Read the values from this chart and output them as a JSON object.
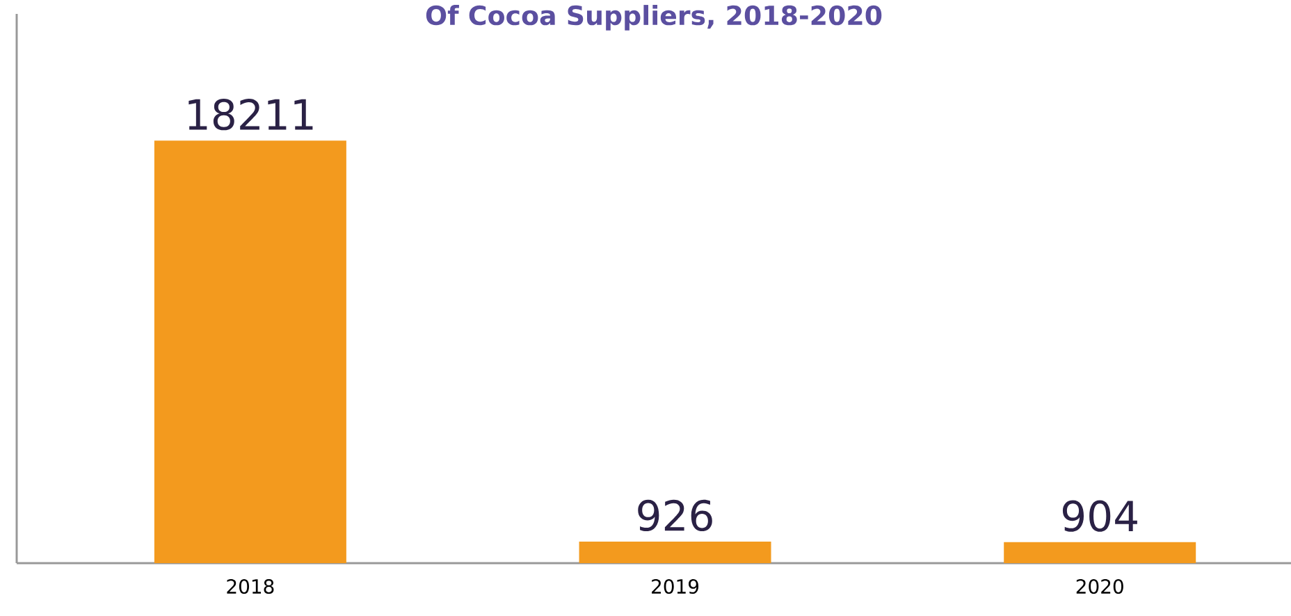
{
  "chart_data": {
    "type": "bar",
    "title": "Of Cocoa Suppliers, 2018-2020",
    "categories": [
      "2018",
      "2019",
      "2020"
    ],
    "values": [
      18211,
      926,
      904
    ],
    "color": "#f39a1e",
    "data_labels": true,
    "tick_labels": "x"
  }
}
